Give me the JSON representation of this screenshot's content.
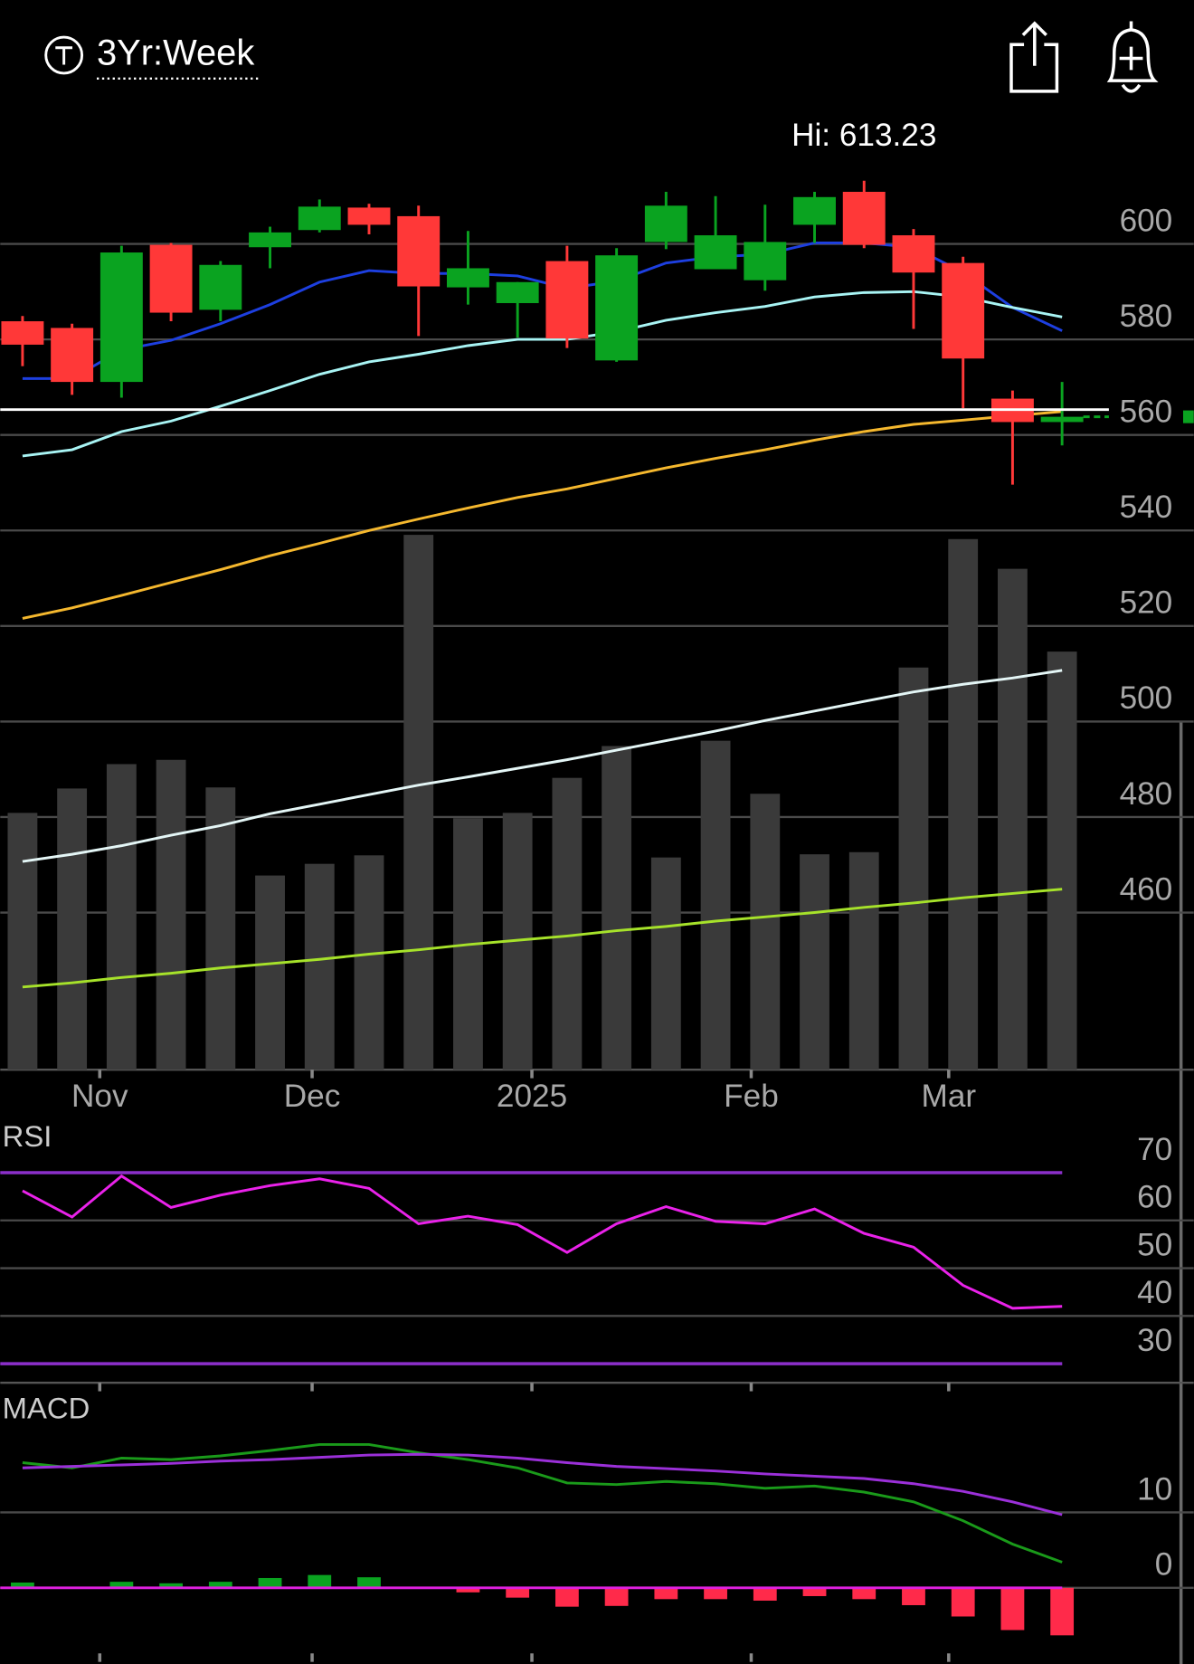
{
  "header": {
    "timeframe": "3Yr:Week"
  },
  "chart_data": [
    {
      "type": "candlestick",
      "annotation": {
        "text": "Hi: 613.23",
        "x": 17
      },
      "x": [
        0,
        1,
        2,
        3,
        4,
        5,
        6,
        7,
        8,
        9,
        10,
        11,
        12,
        13,
        14,
        15,
        16,
        17,
        18,
        19,
        20,
        21
      ],
      "xlim": [
        -0.45,
        23.66
      ],
      "xticks": [
        {
          "value": 1.56,
          "label": "Nov"
        },
        {
          "value": 5.85,
          "label": "Dec"
        },
        {
          "value": 10.29,
          "label": "2025"
        },
        {
          "value": 14.72,
          "label": "Feb"
        },
        {
          "value": 18.71,
          "label": "Mar"
        }
      ],
      "open": [
        583.8,
        582.4,
        571.1,
        599.8,
        586.2,
        599.3,
        602.9,
        607.6,
        605.8,
        590.9,
        587.6,
        596.4,
        575.6,
        600.4,
        594.7,
        592.4,
        604.0,
        610.9,
        601.8,
        596.0,
        567.6,
        562.7
      ],
      "high": [
        584.9,
        583.3,
        599.6,
        600.2,
        596.4,
        603.6,
        609.3,
        608.4,
        608.0,
        602.7,
        592.0,
        599.6,
        599.1,
        610.9,
        610.0,
        608.2,
        610.9,
        613.23,
        603.1,
        597.3,
        569.3,
        571.1
      ],
      "low": [
        574.4,
        568.4,
        567.8,
        583.8,
        583.8,
        594.9,
        602.4,
        602.0,
        580.7,
        587.3,
        580.4,
        578.2,
        575.3,
        598.9,
        594.7,
        590.2,
        600.2,
        599.1,
        582.2,
        565.6,
        549.6,
        557.8
      ],
      "close": [
        578.9,
        571.1,
        598.2,
        585.6,
        595.6,
        602.4,
        607.8,
        604.0,
        591.1,
        594.9,
        592.0,
        580.2,
        597.6,
        608.0,
        601.8,
        600.4,
        609.8,
        599.8,
        594.0,
        576.0,
        562.7,
        563.8
      ],
      "up_color": "#0aa320",
      "down_color": "#ff3838",
      "ylim": [
        427.1,
        624.4
      ],
      "yticks": [
        460,
        480,
        500,
        520,
        540,
        560,
        580,
        600
      ],
      "grid": true,
      "reference_line": {
        "value": 565.3,
        "color": "#ffffff"
      },
      "series": [
        {
          "color": "#1d3fe0",
          "values": [
            571.8,
            571.8,
            577.8,
            579.8,
            583.3,
            587.3,
            592.0,
            594.4,
            593.8,
            593.8,
            593.3,
            590.7,
            592.2,
            596.0,
            597.3,
            597.8,
            600.2,
            600.2,
            599.3,
            594.0,
            586.7,
            581.8
          ]
        },
        {
          "color": "#a8f4f4",
          "values": [
            555.6,
            556.9,
            560.7,
            562.9,
            566.0,
            569.3,
            572.7,
            575.3,
            576.9,
            578.7,
            580.0,
            580.0,
            581.6,
            584.0,
            585.6,
            586.9,
            588.9,
            589.8,
            590.0,
            588.9,
            586.7,
            584.7
          ]
        },
        {
          "color": "#f5b82e",
          "values": [
            521.6,
            523.8,
            526.4,
            529.1,
            531.8,
            534.7,
            537.3,
            540.0,
            542.4,
            544.7,
            546.9,
            548.7,
            550.9,
            553.1,
            555.1,
            556.9,
            558.9,
            560.7,
            562.2,
            563.1,
            564.0,
            564.9
          ]
        },
        {
          "color": "#e4f6f6",
          "values": [
            470.7,
            472.2,
            474.0,
            476.2,
            478.2,
            480.7,
            482.7,
            484.7,
            486.7,
            488.4,
            490.2,
            492.0,
            494.0,
            496.0,
            498.0,
            500.2,
            502.2,
            504.2,
            506.2,
            507.8,
            509.1,
            510.7
          ]
        },
        {
          "color": "#a6e22a",
          "values": [
            444.4,
            445.3,
            446.4,
            447.3,
            448.4,
            449.3,
            450.2,
            451.3,
            452.2,
            453.3,
            454.2,
            455.1,
            456.2,
            457.1,
            458.2,
            459.1,
            460.0,
            461.1,
            462.0,
            463.1,
            464.0,
            464.9
          ]
        }
      ],
      "volume": {
        "color": "#3a3a3a",
        "ylim": [
          0,
          50.8
        ],
        "values": [
          24.2,
          26.5,
          28.8,
          29.2,
          26.6,
          18.3,
          19.4,
          20.2,
          50.4,
          23.7,
          24.2,
          27.5,
          30.5,
          20.0,
          31.0,
          26.0,
          20.3,
          20.5,
          37.9,
          50.0,
          47.2,
          39.4
        ]
      }
    },
    {
      "type": "line",
      "title": "RSI",
      "x": [
        0,
        1,
        2,
        3,
        4,
        5,
        6,
        7,
        8,
        9,
        10,
        11,
        12,
        13,
        14,
        15,
        16,
        17,
        18,
        19,
        20,
        21
      ],
      "xlim": [
        -0.45,
        23.66
      ],
      "values": [
        66.2,
        60.7,
        69.3,
        62.7,
        65.3,
        67.3,
        68.7,
        66.7,
        59.3,
        60.9,
        59.1,
        53.3,
        59.3,
        62.9,
        59.8,
        59.3,
        62.4,
        57.3,
        54.4,
        46.4,
        41.6,
        42.0
      ],
      "color": "#ea22ea",
      "band_color": "#8b2fc9",
      "ylim": [
        26.0,
        80.0
      ],
      "yticks": [
        30,
        40,
        50,
        60,
        70
      ]
    },
    {
      "type": "macd",
      "title": "MACD",
      "x": [
        0,
        1,
        2,
        3,
        4,
        5,
        6,
        7,
        8,
        9,
        10,
        11,
        12,
        13,
        14,
        15,
        16,
        17,
        18,
        19,
        20,
        21
      ],
      "xlim": [
        -0.45,
        23.66
      ],
      "series": [
        {
          "color": "#1a9a1a",
          "values": [
            16.6,
            15.9,
            17.2,
            17.0,
            17.5,
            18.2,
            19.0,
            19.0,
            17.9,
            17.0,
            15.9,
            13.9,
            13.7,
            14.1,
            13.8,
            13.2,
            13.5,
            12.7,
            11.4,
            8.9,
            5.8,
            3.4
          ]
        },
        {
          "color": "#9b30d9",
          "values": [
            15.9,
            16.1,
            16.3,
            16.5,
            16.8,
            17.0,
            17.3,
            17.6,
            17.7,
            17.6,
            17.2,
            16.6,
            16.1,
            15.8,
            15.5,
            15.1,
            14.8,
            14.5,
            13.8,
            12.8,
            11.4,
            9.7
          ]
        }
      ],
      "histogram": [
        0.7,
        0,
        0.8,
        0.6,
        0.8,
        1.3,
        1.7,
        1.4,
        0,
        -0.6,
        -1.3,
        -2.5,
        -2.4,
        -1.5,
        -1.5,
        -1.7,
        -1.1,
        -1.5,
        -2.3,
        -3.8,
        -5.6,
        -6.3
      ],
      "up_color": "#0aa320",
      "down_color": "#ff2a4a",
      "zero_color": "#e020e0",
      "ylim": [
        -10.1,
        25.5
      ],
      "yticks": [
        0,
        10
      ]
    }
  ]
}
